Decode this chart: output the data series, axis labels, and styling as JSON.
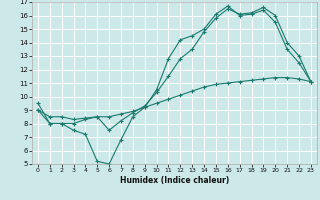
{
  "xlabel": "Humidex (Indice chaleur)",
  "xlim": [
    -0.5,
    23.5
  ],
  "ylim": [
    5,
    17
  ],
  "xticks": [
    0,
    1,
    2,
    3,
    4,
    5,
    6,
    7,
    8,
    9,
    10,
    11,
    12,
    13,
    14,
    15,
    16,
    17,
    18,
    19,
    20,
    21,
    22,
    23
  ],
  "yticks": [
    5,
    6,
    7,
    8,
    9,
    10,
    11,
    12,
    13,
    14,
    15,
    16,
    17
  ],
  "line_color": "#1a7a6e",
  "bg_color": "#cce8e8",
  "grid_color": "#ffffff",
  "line1_x": [
    0,
    1,
    2,
    3,
    4,
    5,
    6,
    7,
    8,
    9,
    10,
    11,
    12,
    13,
    14,
    15,
    16,
    17,
    18,
    19,
    20,
    21,
    22,
    23
  ],
  "line1_y": [
    9.5,
    8.0,
    8.0,
    7.5,
    7.2,
    5.2,
    5.0,
    6.8,
    8.5,
    9.2,
    10.5,
    12.8,
    14.2,
    14.5,
    15.0,
    16.1,
    16.7,
    16.0,
    16.1,
    16.4,
    15.5,
    13.5,
    12.5,
    11.1
  ],
  "line2_x": [
    0,
    1,
    2,
    3,
    4,
    5,
    6,
    7,
    8,
    9,
    10,
    11,
    12,
    13,
    14,
    15,
    16,
    17,
    18,
    19,
    20,
    21,
    22,
    23
  ],
  "line2_y": [
    9.0,
    8.0,
    8.0,
    8.0,
    8.3,
    8.5,
    7.5,
    8.2,
    8.8,
    9.3,
    10.3,
    11.5,
    12.8,
    13.5,
    14.8,
    15.8,
    16.5,
    16.1,
    16.2,
    16.6,
    16.0,
    14.0,
    13.0,
    11.1
  ],
  "line3_x": [
    0,
    1,
    2,
    3,
    4,
    5,
    6,
    7,
    8,
    9,
    10,
    11,
    12,
    13,
    14,
    15,
    16,
    17,
    18,
    19,
    20,
    21,
    22,
    23
  ],
  "line3_y": [
    9.0,
    8.5,
    8.5,
    8.3,
    8.4,
    8.5,
    8.5,
    8.7,
    8.9,
    9.2,
    9.5,
    9.8,
    10.1,
    10.4,
    10.7,
    10.9,
    11.0,
    11.1,
    11.2,
    11.3,
    11.4,
    11.4,
    11.3,
    11.1
  ]
}
